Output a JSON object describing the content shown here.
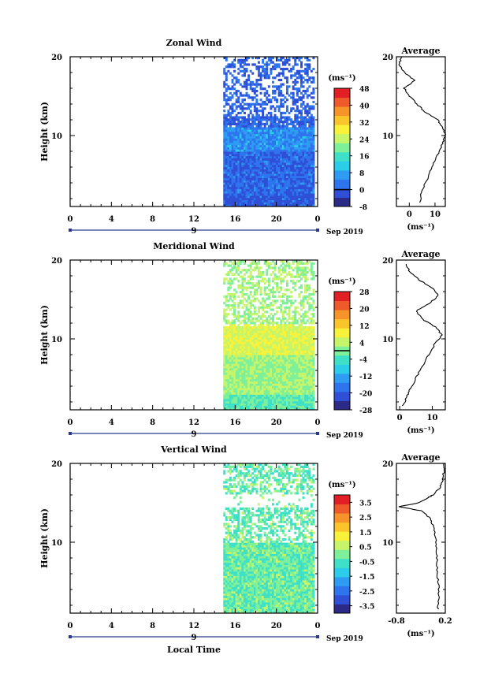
{
  "figure": {
    "colorbar_unit": "(ms⁻¹)",
    "date_label": "Sep 2019",
    "xlabel": "Local Time",
    "colors": {
      "background": "#ffffff",
      "axis": "#000000",
      "profile_line": "#000000"
    }
  },
  "colormap": [
    "#2b2b87",
    "#2f4fd6",
    "#2e74ee",
    "#2d9cf2",
    "#2ccde9",
    "#3fe0c8",
    "#7ff09a",
    "#c6f56a",
    "#f8f23a",
    "#f9c52a",
    "#f6942a",
    "#ef5a2a",
    "#e31f26"
  ],
  "chart_data": [
    {
      "type": "heatmap",
      "title": "Zonal Wind",
      "ylabel": "Height (km)",
      "xlabel": "",
      "y_ticks": [
        "20",
        "10"
      ],
      "ylim": [
        1,
        20
      ],
      "x_ticks": [
        "0",
        "4",
        "8",
        "12",
        "16",
        "20",
        "0"
      ],
      "xlim": [
        0,
        24
      ],
      "day_label": "9",
      "data_start_hour": 15,
      "colorbar_ticks": [
        "48",
        "40",
        "32",
        "24",
        "16",
        "8",
        "0",
        "-8"
      ],
      "colorbar_range": [
        -8,
        48
      ],
      "colorbar_zero_line": 0,
      "zero_contour": true,
      "average": {
        "title": "Average",
        "x_ticks": [
          "0",
          "10"
        ],
        "xlim": [
          -5,
          14
        ],
        "xlabel": "(ms⁻¹)",
        "heights": [
          1.5,
          3,
          4.5,
          6,
          7.5,
          9,
          10,
          11,
          12,
          13,
          14,
          15,
          16,
          17,
          18,
          19,
          20
        ],
        "values": [
          4,
          5,
          7,
          9,
          11,
          13,
          14,
          13,
          11,
          6,
          3,
          0,
          -2,
          2,
          -2,
          -4,
          -3
        ]
      }
    },
    {
      "type": "heatmap",
      "title": "Meridional Wind",
      "ylabel": "Height (km)",
      "xlabel": "",
      "y_ticks": [
        "20",
        "10"
      ],
      "ylim": [
        1,
        20
      ],
      "x_ticks": [
        "0",
        "4",
        "8",
        "12",
        "16",
        "20",
        "0"
      ],
      "xlim": [
        0,
        24
      ],
      "day_label": "9",
      "data_start_hour": 15,
      "colorbar_ticks": [
        "28",
        "20",
        "12",
        "4",
        "-4",
        "-12",
        "-20",
        "-28"
      ],
      "colorbar_range": [
        -28,
        28
      ],
      "colorbar_zero_line": 0,
      "zero_contour": true,
      "average": {
        "title": "Average",
        "x_ticks": [
          "0",
          "10"
        ],
        "xlim": [
          -1,
          14
        ],
        "xlabel": "(ms⁻¹)",
        "heights": [
          1.5,
          2.5,
          3.5,
          5,
          6.5,
          8,
          9.5,
          10.5,
          11.5,
          12.5,
          13.5,
          14.5,
          15.5,
          16.5,
          17.5,
          18.5,
          19.5
        ],
        "values": [
          1,
          2,
          3,
          5,
          7,
          9,
          11,
          13,
          11,
          7,
          5,
          9,
          12,
          10,
          6,
          3,
          2
        ]
      }
    },
    {
      "type": "heatmap",
      "title": "Vertical Wind",
      "ylabel": "Height (km)",
      "xlabel": "Local Time",
      "y_ticks": [
        "20",
        "10"
      ],
      "ylim": [
        1,
        20
      ],
      "x_ticks": [
        "0",
        "4",
        "8",
        "12",
        "16",
        "20",
        "0"
      ],
      "xlim": [
        0,
        24
      ],
      "day_label": "9",
      "data_start_hour": 15,
      "colorbar_ticks": [
        "3.5",
        "2.5",
        "1.5",
        "0.5",
        "-0.5",
        "-1.5",
        "-2.5",
        "-3.5"
      ],
      "colorbar_range": [
        -4,
        4
      ],
      "colorbar_zero_line": null,
      "zero_contour": false,
      "average": {
        "title": "Average",
        "x_ticks": [
          "-0.8",
          "0.2"
        ],
        "xlim": [
          -0.8,
          0.2
        ],
        "xlabel": "(ms⁻¹)",
        "heights": [
          1.5,
          3,
          4.5,
          6,
          7.5,
          9,
          10.5,
          12,
          13,
          14,
          14.5,
          15,
          15.5,
          16,
          17,
          18,
          19,
          20
        ],
        "values": [
          0.05,
          0.07,
          0.06,
          0.04,
          0.03,
          0.02,
          0.0,
          -0.05,
          -0.1,
          -0.3,
          -0.75,
          -0.35,
          -0.2,
          -0.05,
          0.1,
          0.15,
          0.17,
          0.18
        ]
      }
    }
  ]
}
